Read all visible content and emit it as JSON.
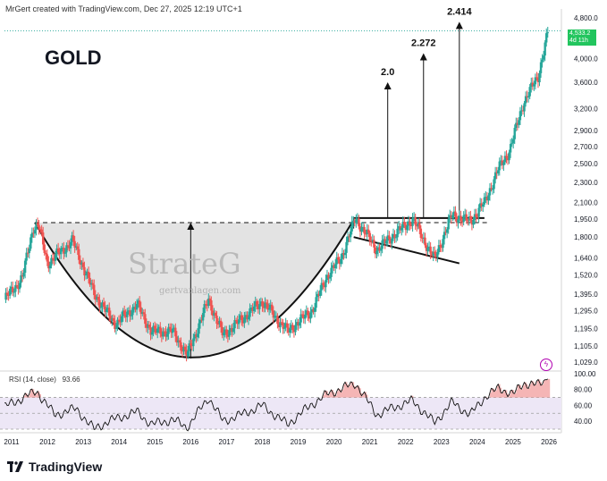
{
  "header": {
    "creator_text": "MrGert created with TradingView.com, Dec 27, 2025 12:19 UTC+1"
  },
  "title": "GOLD",
  "watermark": {
    "brand": "StrateG",
    "url": "gertvanlagen.com"
  },
  "targets": [
    "2.0",
    "2.272",
    "2.414"
  ],
  "price_badge": {
    "price": "4,533.2",
    "countdown": "4d 11h"
  },
  "rsi": {
    "label": "RSI (14, close)",
    "value": "93.66",
    "ticks": [
      "100.00",
      "80.00",
      "60.00",
      "40.00"
    ]
  },
  "footer": {
    "brand": "TradingView"
  },
  "colors": {
    "up": "#26a69a",
    "down": "#ef5350",
    "rsi_line": "#111111",
    "rsi_band": "#ede7f6",
    "arc_fill": "#d9d9d9"
  },
  "chart_data": {
    "type": "candlestick",
    "title": "GOLD",
    "x_ticks": [
      "2011",
      "2012",
      "2013",
      "2014",
      "2015",
      "2016",
      "2017",
      "2018",
      "2019",
      "2020",
      "2021",
      "2022",
      "2023",
      "2024",
      "2025",
      "2026"
    ],
    "y_ticks": [
      1029.0,
      1105.0,
      1195.0,
      1295.0,
      1395.0,
      1520.0,
      1640.0,
      1800.0,
      1950.0,
      2100.0,
      2300.0,
      2500.0,
      2700.0,
      2900.0,
      3200.0,
      3600.0,
      4000.0,
      4800.0
    ],
    "y_scale": "log",
    "ylim": [
      1000,
      4900
    ],
    "series_path": [
      [
        2010.8,
        1360
      ],
      [
        2011.3,
        1500
      ],
      [
        2011.6,
        1880
      ],
      [
        2011.75,
        1900
      ],
      [
        2012.0,
        1600
      ],
      [
        2012.7,
        1770
      ],
      [
        2013.3,
        1400
      ],
      [
        2013.6,
        1300
      ],
      [
        2013.9,
        1220
      ],
      [
        2014.5,
        1330
      ],
      [
        2014.9,
        1180
      ],
      [
        2015.5,
        1180
      ],
      [
        2015.9,
        1060
      ],
      [
        2016.5,
        1360
      ],
      [
        2016.9,
        1160
      ],
      [
        2017.5,
        1260
      ],
      [
        2018.0,
        1350
      ],
      [
        2018.7,
        1180
      ],
      [
        2019.4,
        1300
      ],
      [
        2019.8,
        1510
      ],
      [
        2020.2,
        1640
      ],
      [
        2020.6,
        1960
      ],
      [
        2021.2,
        1700
      ],
      [
        2021.6,
        1800
      ],
      [
        2022.2,
        1950
      ],
      [
        2022.8,
        1630
      ],
      [
        2023.3,
        1990
      ],
      [
        2023.8,
        1930
      ],
      [
        2024.2,
        2100
      ],
      [
        2024.6,
        2450
      ],
      [
        2024.9,
        2650
      ],
      [
        2025.3,
        3300
      ],
      [
        2025.7,
        3700
      ],
      [
        2025.98,
        4533.2
      ]
    ],
    "last_price": 4533.2,
    "rsi_series": [
      [
        2010.8,
        58
      ],
      [
        2011.7,
        78
      ],
      [
        2012.2,
        48
      ],
      [
        2012.8,
        56
      ],
      [
        2013.3,
        30
      ],
      [
        2013.7,
        40
      ],
      [
        2014.5,
        52
      ],
      [
        2014.9,
        36
      ],
      [
        2015.5,
        42
      ],
      [
        2015.9,
        32
      ],
      [
        2016.5,
        70
      ],
      [
        2016.9,
        40
      ],
      [
        2017.5,
        50
      ],
      [
        2018.0,
        60
      ],
      [
        2018.7,
        36
      ],
      [
        2019.4,
        62
      ],
      [
        2019.8,
        74
      ],
      [
        2020.6,
        88
      ],
      [
        2021.2,
        48
      ],
      [
        2021.6,
        56
      ],
      [
        2022.2,
        66
      ],
      [
        2022.8,
        38
      ],
      [
        2023.3,
        64
      ],
      [
        2023.8,
        48
      ],
      [
        2024.2,
        70
      ],
      [
        2024.6,
        82
      ],
      [
        2025.0,
        74
      ],
      [
        2025.3,
        88
      ],
      [
        2025.7,
        86
      ],
      [
        2025.98,
        93.66
      ]
    ]
  }
}
